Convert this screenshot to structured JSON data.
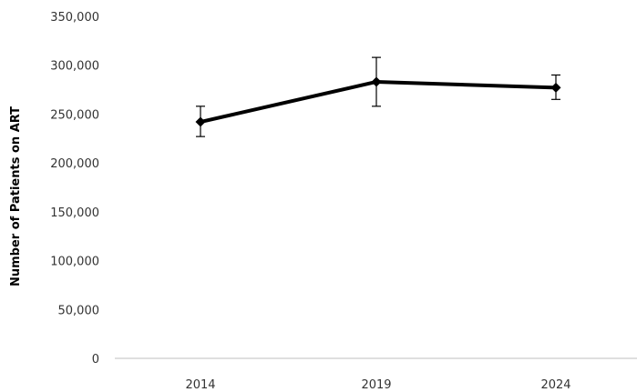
{
  "chart_data": {
    "type": "line",
    "title": "",
    "xlabel": "",
    "ylabel": "Number of Patients on ART",
    "x": [
      "2014",
      "2019",
      "2024"
    ],
    "series": [
      {
        "name": "",
        "values": [
          242000,
          283000,
          277000
        ],
        "error_low": [
          227000,
          258000,
          265000
        ],
        "error_high": [
          258000,
          308000,
          290000
        ],
        "color": "#000000",
        "marker": "diamond"
      }
    ],
    "yticks": [
      0,
      50000,
      100000,
      150000,
      200000,
      250000,
      300000,
      350000
    ],
    "ytick_labels": [
      "0",
      "50,000",
      "100,000",
      "150,000",
      "200,000",
      "250,000",
      "300,000",
      "350,000"
    ],
    "ylim": [
      0,
      350000
    ],
    "grid": false,
    "legend": "none"
  }
}
